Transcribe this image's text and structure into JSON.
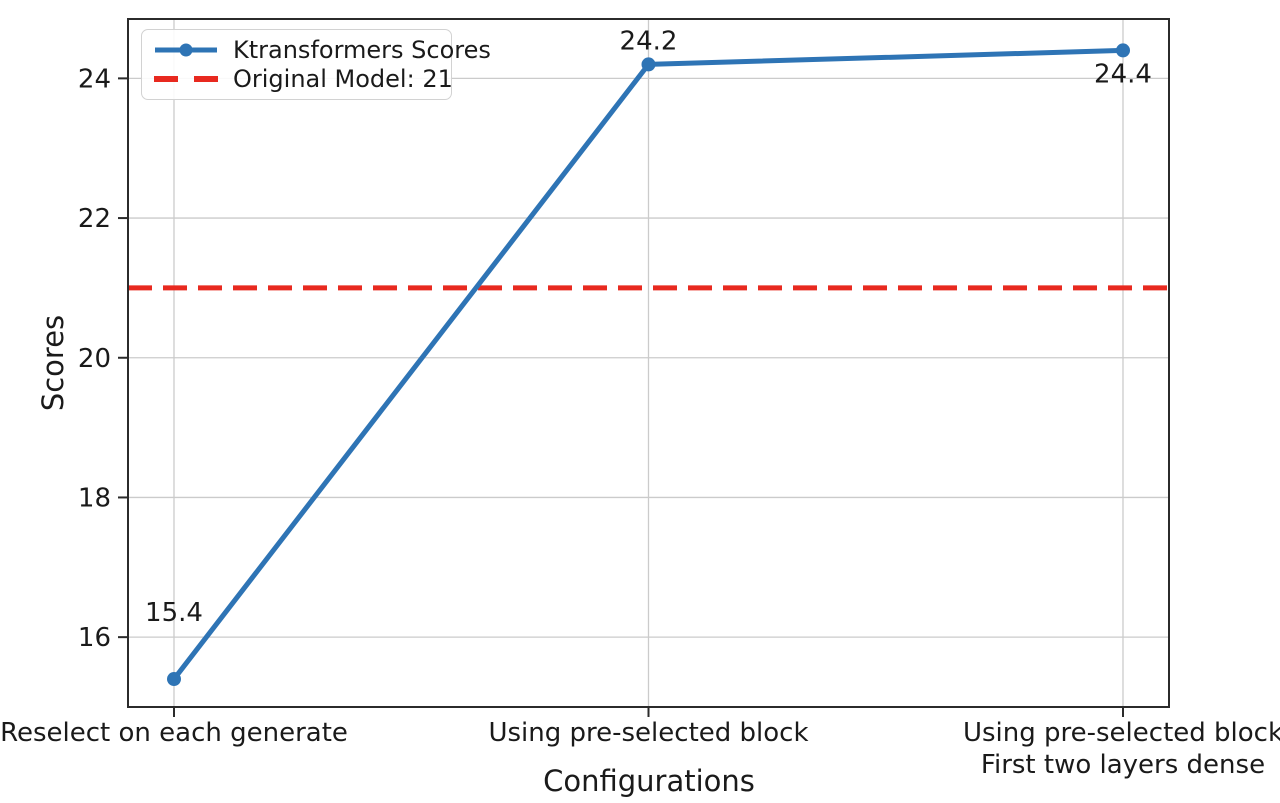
{
  "chart_data": {
    "type": "line",
    "title": "",
    "xlabel": "Configurations",
    "ylabel": "Scores",
    "categories": [
      "Reselect on each generate",
      "Using pre-selected block",
      "Using pre-selected block\nFirst two layers dense"
    ],
    "series": [
      {
        "name": "Ktransformers Scores",
        "color": "#2e74b5",
        "values": [
          15.4,
          24.2,
          24.4
        ],
        "point_labels": [
          "15.4",
          "24.2",
          "24.4"
        ]
      }
    ],
    "reference_line": {
      "label": "Original Model: 21",
      "value": 21,
      "color": "#e8291f",
      "style": "dashed"
    },
    "yticks": [
      16,
      18,
      20,
      22,
      24
    ],
    "ylim": [
      15.0,
      24.85
    ],
    "grid": true,
    "grid_color": "#cbcbcb",
    "spine_color": "#2b2b2b",
    "legend_position": "upper-left"
  }
}
